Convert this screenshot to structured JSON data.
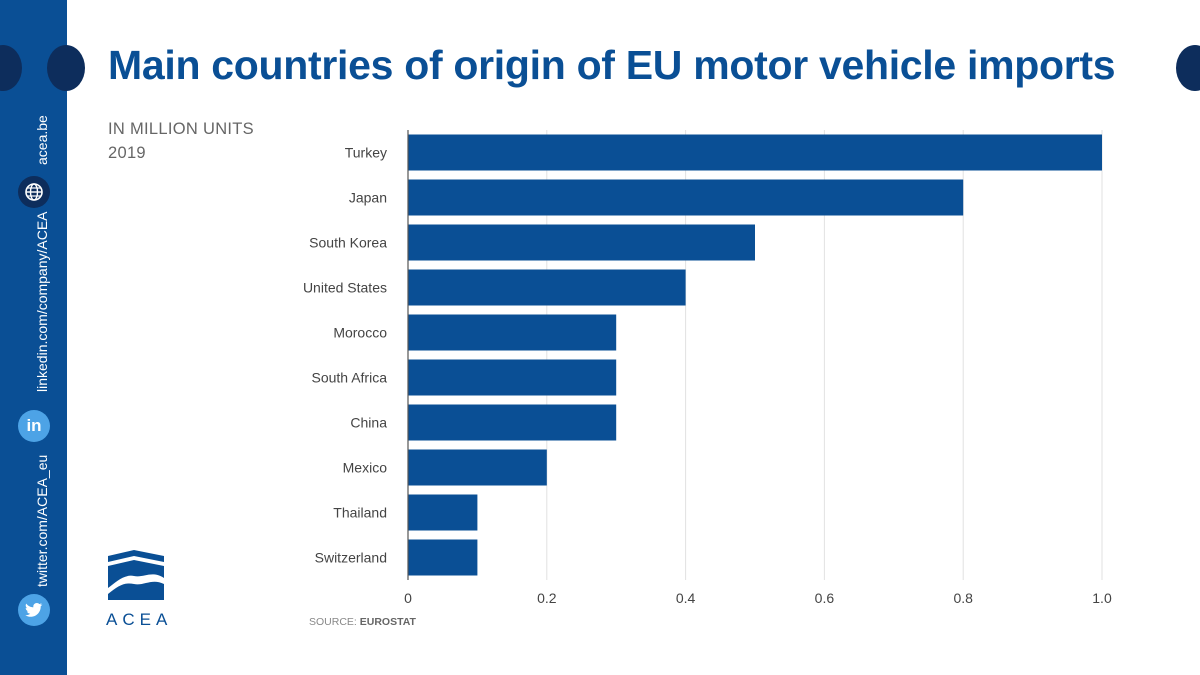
{
  "title": "Main countries of origin of EU motor vehicle imports",
  "subtitle_line1": "IN MILLION UNITS",
  "subtitle_line2": "2019",
  "source_prefix": "SOURCE:",
  "source_name": "EUROSTAT",
  "logo_text": "ACEA",
  "sidebar": {
    "website": "acea.be",
    "linkedin": "linkedin.com/company/ACEA",
    "twitter": "twitter.com/ACEA_eu",
    "linkedin_icon_text": "in"
  },
  "colors": {
    "bar": "#0a4f95",
    "sidebar": "#0a4f95",
    "title": "#0a4f95",
    "grid": "#e2e2e2"
  },
  "chart_data": {
    "type": "bar",
    "orientation": "horizontal",
    "categories": [
      "Turkey",
      "Japan",
      "South Korea",
      "United States",
      "Morocco",
      "South Africa",
      "China",
      "Mexico",
      "Thailand",
      "Switzerland"
    ],
    "values": [
      1.0,
      0.8,
      0.5,
      0.4,
      0.3,
      0.3,
      0.3,
      0.2,
      0.1,
      0.1
    ],
    "xticks": [
      "0",
      "0.2",
      "0.4",
      "0.6",
      "0.8",
      "1.0"
    ],
    "xlim": [
      0,
      1.0
    ],
    "grid": true
  }
}
